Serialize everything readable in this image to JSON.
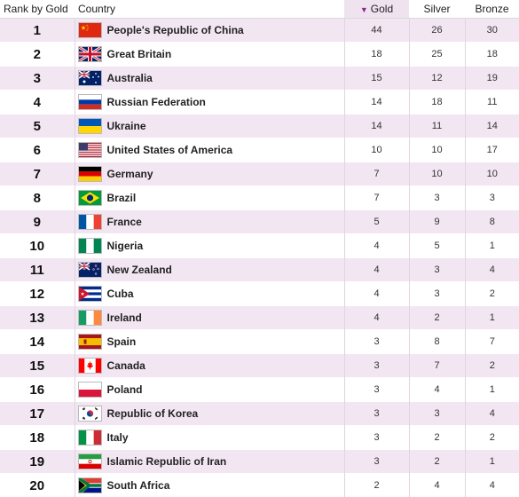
{
  "headers": {
    "rank": "Rank by Gold",
    "country": "Country",
    "gold": "Gold",
    "silver": "Silver",
    "bronze": "Bronze"
  },
  "sort": {
    "column": "gold",
    "direction": "descending"
  },
  "rows": [
    {
      "rank": "1",
      "country": "People's Republic of China",
      "flag": "china-flag-icon",
      "gold": "44",
      "silver": "26",
      "bronze": "30"
    },
    {
      "rank": "2",
      "country": "Great Britain",
      "flag": "great-britain-flag-icon",
      "gold": "18",
      "silver": "25",
      "bronze": "18"
    },
    {
      "rank": "3",
      "country": "Australia",
      "flag": "australia-flag-icon",
      "gold": "15",
      "silver": "12",
      "bronze": "19"
    },
    {
      "rank": "4",
      "country": "Russian Federation",
      "flag": "russia-flag-icon",
      "gold": "14",
      "silver": "18",
      "bronze": "11"
    },
    {
      "rank": "5",
      "country": "Ukraine",
      "flag": "ukraine-flag-icon",
      "gold": "14",
      "silver": "11",
      "bronze": "14"
    },
    {
      "rank": "6",
      "country": "United States of America",
      "flag": "usa-flag-icon",
      "gold": "10",
      "silver": "10",
      "bronze": "17"
    },
    {
      "rank": "7",
      "country": "Germany",
      "flag": "germany-flag-icon",
      "gold": "7",
      "silver": "10",
      "bronze": "10"
    },
    {
      "rank": "8",
      "country": "Brazil",
      "flag": "brazil-flag-icon",
      "gold": "7",
      "silver": "3",
      "bronze": "3"
    },
    {
      "rank": "9",
      "country": "France",
      "flag": "france-flag-icon",
      "gold": "5",
      "silver": "9",
      "bronze": "8"
    },
    {
      "rank": "10",
      "country": "Nigeria",
      "flag": "nigeria-flag-icon",
      "gold": "4",
      "silver": "5",
      "bronze": "1"
    },
    {
      "rank": "11",
      "country": "New Zealand",
      "flag": "new-zealand-flag-icon",
      "gold": "4",
      "silver": "3",
      "bronze": "4"
    },
    {
      "rank": "12",
      "country": "Cuba",
      "flag": "cuba-flag-icon",
      "gold": "4",
      "silver": "3",
      "bronze": "2"
    },
    {
      "rank": "13",
      "country": "Ireland",
      "flag": "ireland-flag-icon",
      "gold": "4",
      "silver": "2",
      "bronze": "1"
    },
    {
      "rank": "14",
      "country": "Spain",
      "flag": "spain-flag-icon",
      "gold": "3",
      "silver": "8",
      "bronze": "7"
    },
    {
      "rank": "15",
      "country": "Canada",
      "flag": "canada-flag-icon",
      "gold": "3",
      "silver": "7",
      "bronze": "2"
    },
    {
      "rank": "16",
      "country": "Poland",
      "flag": "poland-flag-icon",
      "gold": "3",
      "silver": "4",
      "bronze": "1"
    },
    {
      "rank": "17",
      "country": "Republic of Korea",
      "flag": "korea-flag-icon",
      "gold": "3",
      "silver": "3",
      "bronze": "4"
    },
    {
      "rank": "18",
      "country": "Italy",
      "flag": "italy-flag-icon",
      "gold": "3",
      "silver": "2",
      "bronze": "2"
    },
    {
      "rank": "19",
      "country": "Islamic Republic of Iran",
      "flag": "iran-flag-icon",
      "gold": "3",
      "silver": "2",
      "bronze": "1"
    },
    {
      "rank": "20",
      "country": "South Africa",
      "flag": "south-africa-flag-icon",
      "gold": "2",
      "silver": "4",
      "bronze": "4"
    }
  ]
}
